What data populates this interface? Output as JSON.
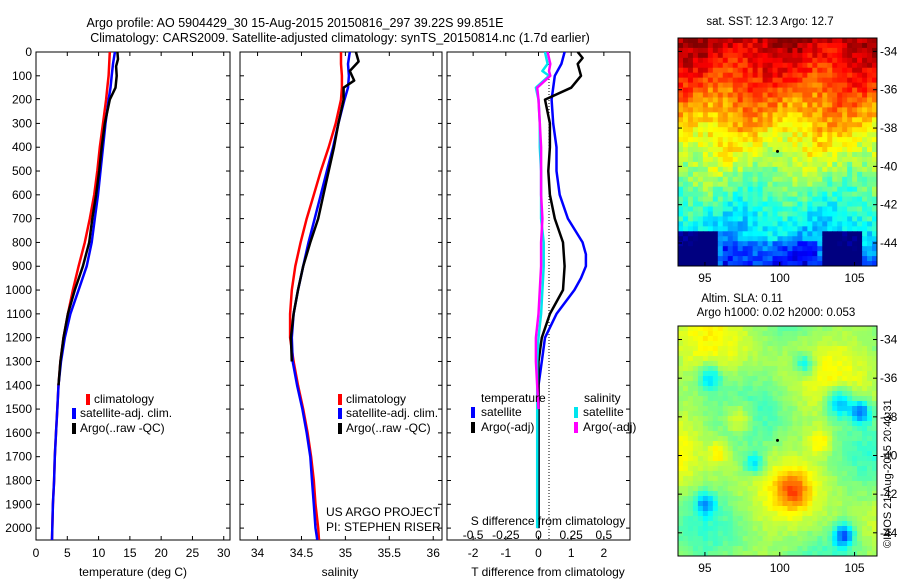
{
  "header": {
    "line1": "Argo profile: AO 5904429_30 15-Aug-2015 20150816_297 39.22S 99.851E",
    "line2": "Climatology: CARS2009. Satellite-adjusted climatology: synTS_20150814.nc (1.7d earlier)"
  },
  "colors": {
    "climatology": "#ff0000",
    "satellite": "#0000ff",
    "argo": "#000000",
    "satellite_s": "#00e5ee",
    "argo_s": "#ff00ff"
  },
  "chart_data": [
    {
      "type": "line",
      "xlabel": "temperature (deg C)",
      "xlim": [
        0,
        31
      ],
      "ylim": [
        2050,
        0
      ],
      "xticks": [
        "0",
        "5",
        "10",
        "15",
        "20",
        "25",
        "30"
      ],
      "yticks": [
        "0",
        "100",
        "200",
        "300",
        "400",
        "500",
        "600",
        "700",
        "800",
        "900",
        "1000",
        "1100",
        "1200",
        "1300",
        "1400",
        "1500",
        "1600",
        "1700",
        "1800",
        "1900",
        "2000"
      ],
      "legend": [
        "climatology",
        "satellite-adj. clim.",
        "Argo(..raw -QC)"
      ],
      "series": [
        {
          "name": "climatology",
          "depth": [
            0,
            50,
            100,
            150,
            200,
            300,
            400,
            500,
            600,
            700,
            800,
            900,
            1000,
            1100,
            1200,
            1300,
            1400,
            1500,
            1600,
            1700,
            1800,
            1900,
            2000,
            2050
          ],
          "values": [
            11.8,
            11.7,
            11.6,
            11.4,
            11.2,
            10.7,
            10.2,
            9.8,
            9.3,
            8.6,
            7.8,
            6.8,
            5.9,
            5.1,
            4.4,
            3.9,
            3.6,
            3.4,
            3.2,
            3.0,
            2.9,
            2.7,
            2.6,
            2.55
          ]
        },
        {
          "name": "satellite-adj. clim.",
          "depth": [
            0,
            50,
            100,
            150,
            200,
            300,
            400,
            500,
            600,
            700,
            800,
            900,
            1000,
            1100,
            1200,
            1300,
            1400,
            1500,
            1600,
            1700,
            1800,
            1900,
            2000,
            2050
          ],
          "values": [
            12.6,
            12.3,
            12.1,
            11.9,
            11.6,
            11.1,
            10.7,
            10.3,
            9.9,
            9.4,
            8.9,
            8.1,
            6.8,
            5.5,
            4.6,
            4.0,
            3.6,
            3.4,
            3.2,
            3.0,
            2.9,
            2.7,
            2.6,
            2.55
          ]
        },
        {
          "name": "Argo(..raw -QC)",
          "depth": [
            0,
            30,
            60,
            100,
            150,
            200,
            300,
            400,
            500,
            600,
            700,
            800,
            900,
            1000,
            1100,
            1200,
            1300,
            1400
          ],
          "values": [
            13.0,
            13.1,
            12.8,
            12.9,
            12.7,
            11.8,
            11.0,
            10.5,
            10.1,
            9.6,
            9.0,
            8.5,
            7.5,
            6.2,
            5.1,
            4.4,
            3.9,
            3.6
          ]
        }
      ]
    },
    {
      "type": "line",
      "xlabel": "salinity",
      "xlim": [
        33.8,
        36.1
      ],
      "ylim": [
        2050,
        0
      ],
      "xticks": [
        "34",
        "34.5",
        "35",
        "35.5",
        "36"
      ],
      "legend": [
        "climatology",
        "satellite-adj. clim.",
        "Argo(..raw -QC)"
      ],
      "annotations": [
        "US ARGO PROJECT",
        "PI: STEPHEN RISER"
      ],
      "series": [
        {
          "name": "climatology",
          "depth": [
            0,
            50,
            100,
            150,
            200,
            300,
            400,
            500,
            600,
            700,
            800,
            900,
            1000,
            1100,
            1200,
            1300,
            1400,
            1500,
            1600,
            1700,
            1800,
            1900,
            2000,
            2050
          ],
          "values": [
            34.95,
            34.95,
            34.96,
            34.96,
            34.95,
            34.89,
            34.81,
            34.72,
            34.64,
            34.56,
            34.49,
            34.43,
            34.39,
            34.37,
            34.37,
            34.41,
            34.46,
            34.52,
            34.57,
            34.61,
            34.64,
            34.66,
            34.69,
            34.7
          ]
        },
        {
          "name": "satellite-adj. clim.",
          "depth": [
            0,
            50,
            100,
            150,
            200,
            300,
            400,
            500,
            600,
            700,
            800,
            900,
            1000,
            1100,
            1200,
            1300,
            1400,
            1500,
            1600,
            1700,
            1800,
            1900,
            2000,
            2050
          ],
          "values": [
            35.05,
            35.03,
            35.04,
            35.03,
            34.99,
            34.92,
            34.86,
            34.79,
            34.72,
            34.65,
            34.58,
            34.52,
            34.46,
            34.41,
            34.39,
            34.4,
            34.45,
            34.51,
            34.56,
            34.6,
            34.62,
            34.64,
            34.66,
            34.68
          ]
        },
        {
          "name": "Argo(..raw -QC)",
          "depth": [
            0,
            40,
            80,
            120,
            150,
            200,
            300,
            400,
            500,
            600,
            700,
            800,
            900,
            1000,
            1100,
            1200,
            1300
          ],
          "values": [
            35.12,
            35.15,
            35.05,
            35.1,
            34.98,
            34.98,
            34.92,
            34.87,
            34.81,
            34.75,
            34.69,
            34.6,
            34.52,
            34.46,
            34.41,
            34.38,
            34.39
          ]
        }
      ]
    },
    {
      "type": "line",
      "xlabel": "T difference from climatology",
      "top_axis_label": "S difference from climatology",
      "xlim": [
        -2.8,
        2.8
      ],
      "ylim": [
        2050,
        0
      ],
      "xticks": [
        "-2",
        "-1",
        "0",
        "1",
        "2"
      ],
      "xticks_top": [
        "-0.5",
        "-0.25",
        "0",
        "0.25",
        "0.5"
      ],
      "legend_titles": [
        "temperature",
        "salinity"
      ],
      "legend": [
        "satellite",
        "Argo(-adj)",
        "satellite",
        "Argo(-adj)"
      ],
      "series": [
        {
          "name": "satellite",
          "var": "temperature",
          "depth": [
            0,
            50,
            100,
            200,
            300,
            400,
            500,
            600,
            700,
            800,
            850,
            900,
            950,
            1000,
            1100,
            1200,
            1300,
            1400,
            1500,
            1700,
            1900,
            2000
          ],
          "values": [
            0.8,
            0.7,
            0.5,
            0.4,
            0.45,
            0.55,
            0.55,
            0.65,
            0.9,
            1.35,
            1.45,
            1.45,
            1.3,
            1.1,
            0.55,
            0.2,
            0.1,
            0.0,
            0.0,
            0.0,
            0.0,
            0.0
          ]
        },
        {
          "name": "Argo(-adj)",
          "var": "temperature",
          "depth": [
            0,
            25,
            50,
            100,
            150,
            200,
            300,
            400,
            500,
            600,
            700,
            800,
            900,
            1000,
            1100,
            1200,
            1300,
            1400,
            1500,
            1700,
            1900,
            2000
          ],
          "values": [
            1.2,
            1.35,
            1.2,
            1.3,
            1.0,
            0.2,
            0.35,
            0.35,
            0.3,
            0.35,
            0.5,
            0.75,
            0.8,
            0.75,
            0.35,
            0.1,
            0.0,
            0.0,
            0.0,
            0.0,
            0.0,
            0.0
          ]
        },
        {
          "name": "satellite",
          "var": "salinity",
          "depth": [
            0,
            50,
            80,
            100,
            150,
            200,
            300,
            400,
            500,
            600,
            700,
            800,
            900,
            1000,
            1100,
            1200,
            1300,
            1400,
            1500,
            1700,
            1900,
            2000
          ],
          "values": [
            0.05,
            0.07,
            0.03,
            0.08,
            -0.02,
            0.0,
            0.01,
            0.01,
            0.02,
            0.02,
            0.02,
            0.04,
            0.04,
            0.03,
            0.02,
            0.0,
            -0.01,
            -0.01,
            -0.01,
            -0.01,
            -0.01,
            -0.01
          ]
        },
        {
          "name": "Argo(-adj)",
          "var": "salinity",
          "depth": [
            0,
            50,
            80,
            100,
            150,
            200,
            300,
            400,
            500,
            600,
            700,
            800,
            900,
            1000,
            1100,
            1200,
            1300,
            1400,
            1500
          ],
          "values": [
            0.07,
            0.09,
            0.08,
            0.09,
            -0.01,
            0.0,
            0.01,
            0.02,
            0.02,
            0.02,
            0.03,
            0.02,
            0.02,
            0.01,
            0.0,
            -0.02,
            -0.02,
            -0.01,
            0.0
          ]
        }
      ]
    },
    {
      "type": "heatmap",
      "title": "sat. SST: 12.3 Argo: 12.7",
      "xticks": [
        "95",
        "100",
        "105"
      ],
      "yticks": [
        "-34",
        "-36",
        "-38",
        "-40",
        "-42",
        "-44"
      ],
      "xlim": [
        93.2,
        106.5
      ],
      "ylim": [
        -45.2,
        -33.3
      ],
      "marker": {
        "lon": 99.851,
        "lat": -39.22
      }
    },
    {
      "type": "heatmap",
      "title_lines": [
        "Altim. SLA: 0.11",
        "Argo h1000: 0.02 h2000: 0.053"
      ],
      "xticks": [
        "95",
        "100",
        "105"
      ],
      "yticks": [
        "-34",
        "-36",
        "-38",
        "-40",
        "-42",
        "-44"
      ],
      "xlim": [
        93.2,
        106.5
      ],
      "ylim": [
        -45.2,
        -33.3
      ],
      "marker": {
        "lon": 99.851,
        "lat": -39.22
      }
    }
  ],
  "credit": "©IMOS 21-Aug-2015 20:41:31"
}
